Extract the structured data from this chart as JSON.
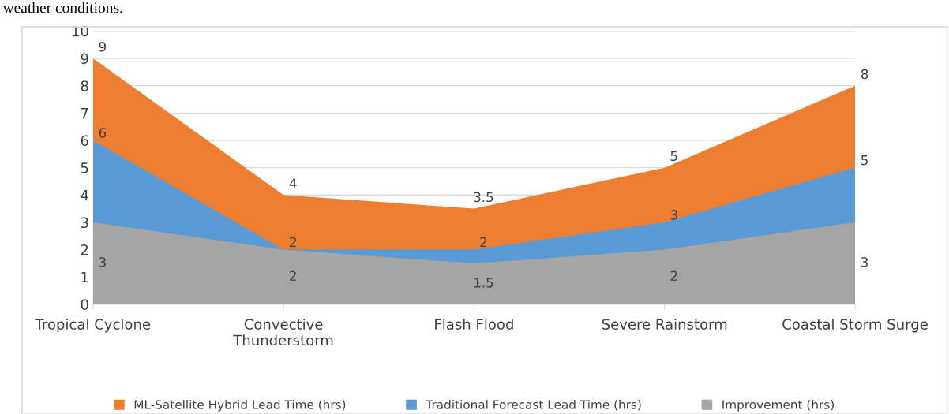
{
  "chart_data": {
    "type": "area",
    "categories": [
      "Tropical Cyclone",
      "Convective\nThunderstorm",
      "Flash Flood",
      "Severe Rainstorm",
      "Coastal Storm Surge"
    ],
    "series": [
      {
        "name": "ML-Satellite Hybrid Lead Time (hrs)",
        "color": "#ed7d31",
        "values": [
          9,
          4,
          3.5,
          5,
          8
        ]
      },
      {
        "name": "Traditional Forecast Lead Time (hrs)",
        "color": "#5b9bd5",
        "values": [
          6,
          2,
          2,
          3,
          5
        ]
      },
      {
        "name": "Improvement (hrs)",
        "color": "#a5a5a5",
        "values": [
          3,
          2,
          1.5,
          2,
          3
        ]
      }
    ],
    "ylim": [
      0,
      10
    ],
    "yticks": [
      0,
      1,
      2,
      3,
      4,
      5,
      6,
      7,
      8,
      9,
      10
    ],
    "grid": "y",
    "legend": "bottom",
    "data_labels": true,
    "annotations": [
      "weather conditions."
    ]
  }
}
